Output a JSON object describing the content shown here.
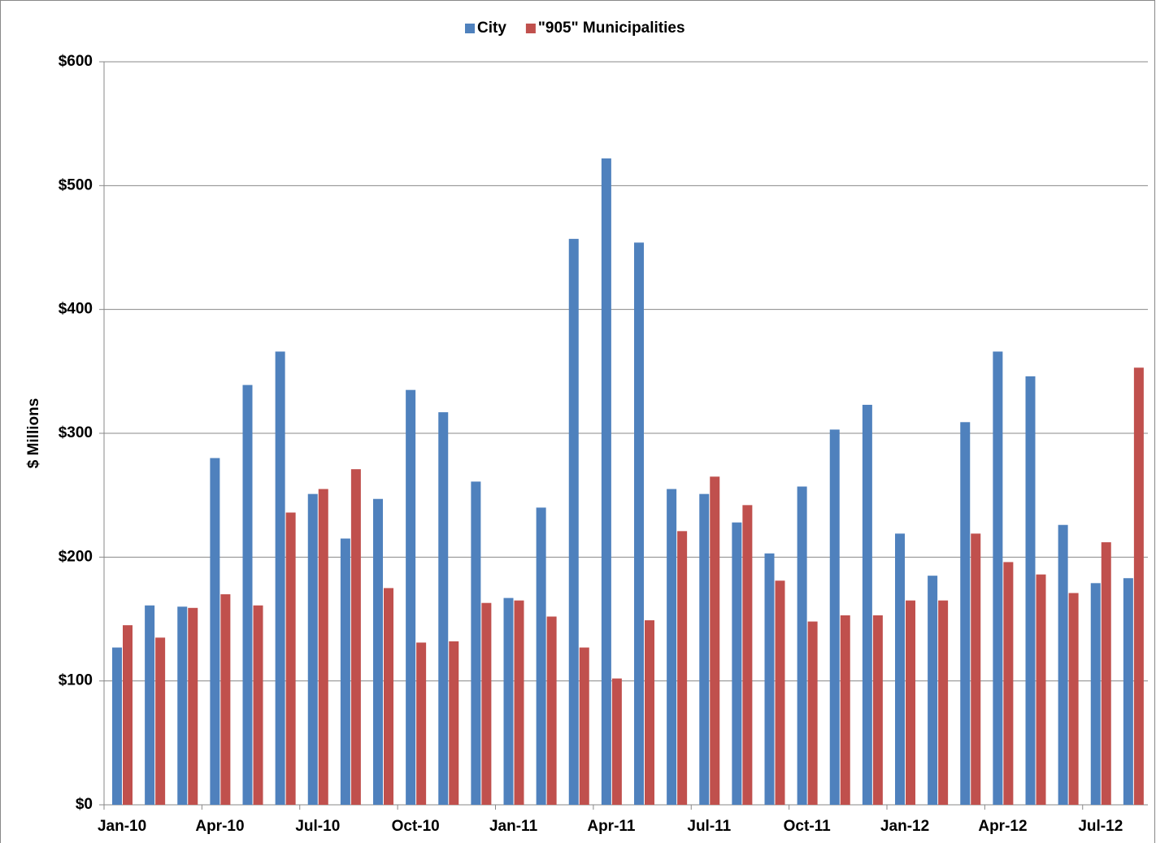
{
  "chart_data": {
    "type": "bar",
    "y_label": "$ Millions",
    "categories": [
      "Jan-10",
      null,
      null,
      "Apr-10",
      null,
      null,
      "Jul-10",
      null,
      null,
      "Oct-10",
      null,
      null,
      "Jan-11",
      null,
      null,
      "Apr-11",
      null,
      null,
      "Jul-11",
      null,
      null,
      "Oct-11",
      null,
      null,
      "Jan-12",
      null,
      null,
      "Apr-12",
      null,
      null,
      "Jul-12",
      null
    ],
    "series": [
      {
        "name": "City",
        "color": "#4f81bd",
        "values": [
          127,
          161,
          160,
          280,
          339,
          366,
          251,
          215,
          247,
          335,
          317,
          261,
          167,
          240,
          457,
          522,
          454,
          255,
          251,
          228,
          203,
          257,
          303,
          323,
          219,
          185,
          309,
          366,
          346,
          226,
          179,
          183
        ]
      },
      {
        "name": "\"905\" Municipalities",
        "color": "#c0504d",
        "values": [
          145,
          135,
          159,
          170,
          161,
          236,
          255,
          271,
          175,
          131,
          132,
          163,
          165,
          152,
          127,
          102,
          149,
          221,
          265,
          242,
          181,
          148,
          153,
          153,
          165,
          165,
          219,
          196,
          186,
          171,
          212,
          353
        ]
      }
    ],
    "ylim": [
      0,
      600
    ],
    "yticks": [
      {
        "value": 0,
        "label": "$0"
      },
      {
        "value": 100,
        "label": "$100"
      },
      {
        "value": 200,
        "label": "$200"
      },
      {
        "value": 300,
        "label": "$300"
      },
      {
        "value": 400,
        "label": "$400"
      },
      {
        "value": 500,
        "label": "$500"
      },
      {
        "value": 600,
        "label": "$600"
      }
    ],
    "grid": true,
    "legend": "top"
  }
}
